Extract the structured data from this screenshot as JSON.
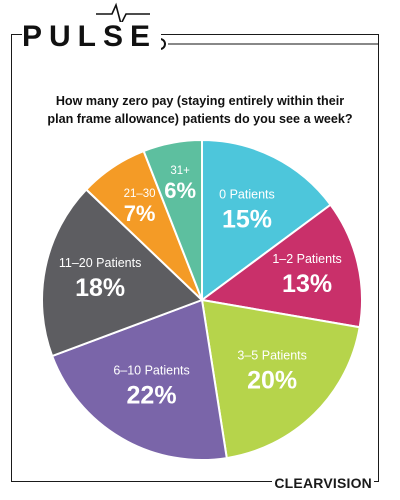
{
  "brand": {
    "name": "PULSE"
  },
  "footer": {
    "logo": "CLEARVISION"
  },
  "chart_data": {
    "type": "pie",
    "title_lines": [
      "How many zero pay (staying entirely within their",
      "plan frame allowance) patients do you see a week?"
    ],
    "start_angle_deg": 0,
    "direction": "clockwise",
    "slices": [
      {
        "label": "0 Patients",
        "value": 15,
        "display": "15%",
        "color": "#4dc6db"
      },
      {
        "label": "1–2 Patients",
        "value": 13,
        "display": "13%",
        "color": "#c9306a"
      },
      {
        "label": "3–5 Patients",
        "value": 20,
        "display": "20%",
        "color": "#b6d44b"
      },
      {
        "label": "6–10 Patients",
        "value": 22,
        "display": "22%",
        "color": "#7a65a9"
      },
      {
        "label": "11–20 Patients",
        "value": 18,
        "display": "18%",
        "color": "#5d5d61"
      },
      {
        "label": "21–30",
        "value": 7,
        "display": "7%",
        "color": "#f49b26"
      },
      {
        "label": "31+",
        "value": 6,
        "display": "6%",
        "color": "#5dbf9f"
      }
    ]
  }
}
